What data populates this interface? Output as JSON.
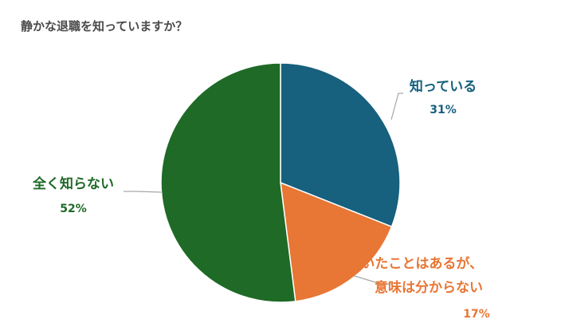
{
  "chart_data": {
    "type": "pie",
    "title": "静かな退職を知っていますか？",
    "slices": [
      {
        "label": "知っている",
        "label_lines": [
          "知っている"
        ],
        "value": 31,
        "value_label": "31%",
        "color": "#17607e"
      },
      {
        "label": "聞いたことはあるが、意味は分からない",
        "label_lines": [
          "聞いたことはあるが、",
          "意味は分からない"
        ],
        "value": 17,
        "value_label": "17%",
        "color": "#e87635"
      },
      {
        "label": "全く知らない",
        "label_lines": [
          "全く知らない"
        ],
        "value": 52,
        "value_label": "52%",
        "color": "#1e6a26"
      }
    ],
    "start_angle_deg": 0,
    "direction": "clockwise",
    "legend": "none",
    "label_style": "outside-with-leader-lines"
  }
}
